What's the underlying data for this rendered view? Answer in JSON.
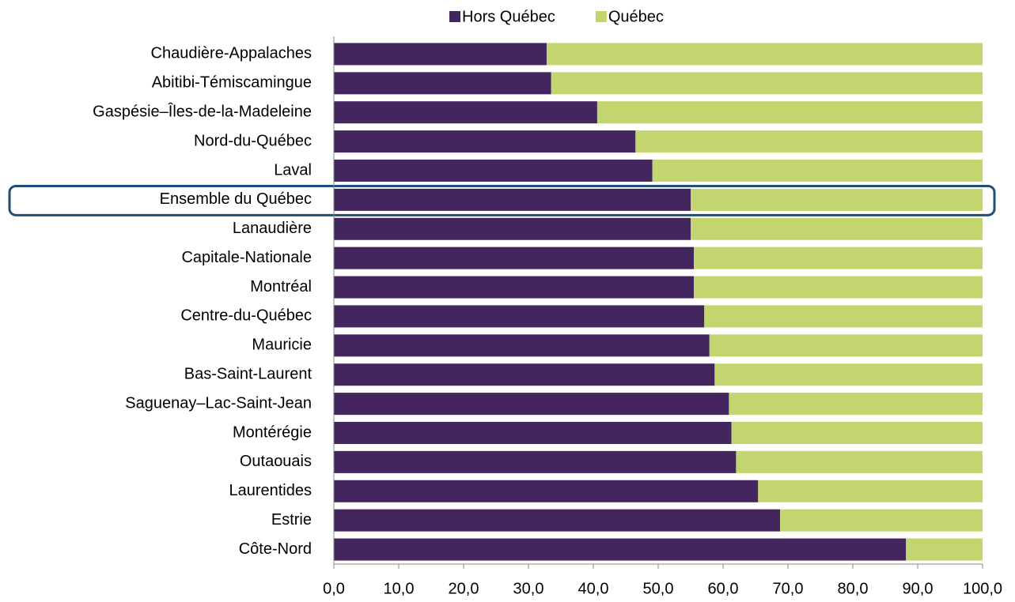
{
  "chart_data": {
    "type": "stacked-bar-horizontal",
    "categories": [
      "Chaudière-Appalaches",
      "Abitibi-Témiscamingue",
      "Gaspésie–Îles-de-la-Madeleine",
      "Nord-du-Québec",
      "Laval",
      "Ensemble du Québec",
      "Lanaudière",
      "Capitale-Nationale",
      "Montréal",
      "Centre-du-Québec",
      "Mauricie",
      "Bas-Saint-Laurent",
      "Saguenay–Lac-Saint-Jean",
      "Montérégie",
      "Outaouais",
      "Laurentides",
      "Estrie",
      "Côte-Nord"
    ],
    "series": [
      {
        "name": "Hors Québec",
        "color": "#43265e",
        "values": [
          32.8,
          33.5,
          40.6,
          46.5,
          49.1,
          55.0,
          55.0,
          55.5,
          55.5,
          57.1,
          57.9,
          58.7,
          60.9,
          61.3,
          62.0,
          65.4,
          68.8,
          88.2
        ]
      },
      {
        "name": "Québec",
        "color": "#c2d56f",
        "values": [
          67.2,
          66.5,
          59.4,
          53.5,
          50.9,
          45.0,
          45.0,
          44.5,
          44.5,
          42.9,
          42.1,
          41.3,
          39.1,
          38.7,
          38.0,
          34.6,
          31.2,
          11.8
        ]
      }
    ],
    "xlim": [
      0,
      100
    ],
    "xticks": [
      {
        "value": 0,
        "label": "0,0"
      },
      {
        "value": 10,
        "label": "10,0"
      },
      {
        "value": 20,
        "label": "20,0"
      },
      {
        "value": 30,
        "label": "30,0"
      },
      {
        "value": 40,
        "label": "40,0"
      },
      {
        "value": 50,
        "label": "50,0"
      },
      {
        "value": 60,
        "label": "60,0"
      },
      {
        "value": 70,
        "label": "70,0"
      },
      {
        "value": 80,
        "label": "80,0"
      },
      {
        "value": 90,
        "label": "90,0"
      },
      {
        "value": 100,
        "label": "100,0"
      }
    ],
    "legend": "top",
    "grid": false
  }
}
